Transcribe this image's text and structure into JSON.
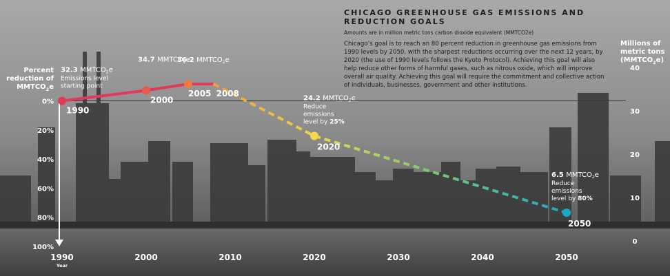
{
  "title": "CHICAGO GREENHOUSE GAS EMISSIONS AND REDUCTION GOALS",
  "subtitle": "Amounts are in million metric tons carbon dioxide equivalent (MMTCO2e)",
  "description": "Chicago’s goal is to reach an 80 percent reduction in greenhouse gas emissions from 1990 levels by 2050, with the sharpest reductions occurring over the next 12 years, by 2020 (the use of 1990 levels follows the Kyoto Protocol). Achieving this goal will also help reduce other forms of harmful gases, such as nitrous oxide, which will improve overall air quality. Achieving this goal will require the commitment and collective action of individuals, businesses, government and other institutions.",
  "left_axis_title": {
    "line1": "Percent",
    "line2": "reduction of",
    "line3": "MMTCO",
    "sub": "2",
    "line3b": "e"
  },
  "right_axis_title": {
    "line1": "Millions of",
    "line2": "metric tons",
    "line3": "(MMTCO",
    "sub": "2",
    "line3b": "e)"
  },
  "colors": {
    "actual": "#e03a5b",
    "actual_end": "#f07a3a",
    "target_start": "#f59a3a",
    "target_mid": "#e9d84a",
    "target_end": "#1aa8c8",
    "axis": "#ffffff"
  },
  "chart_data": {
    "type": "line",
    "title": "CHICAGO GREENHOUSE GAS EMISSIONS AND REDUCTION GOALS",
    "xlabel": "Year",
    "ylabel_left": "Percent reduction of MMTCO2e",
    "ylabel_right": "Millions of metric tons (MMTCO2e)",
    "x_ticks": [
      "1990",
      "2000",
      "2010",
      "2020",
      "2030",
      "2040",
      "2050"
    ],
    "x_range": [
      1990,
      2050
    ],
    "y_left_ticks": [
      "0%",
      "20%",
      "40%",
      "60%",
      "80%",
      "100%"
    ],
    "y_right_ticks": [
      "0",
      "10",
      "20",
      "30",
      "40"
    ],
    "y_right_range": [
      0,
      40
    ],
    "series": [
      {
        "style": "solid",
        "points": [
          {
            "x": 1990,
            "y": 32.3
          },
          {
            "x": 2000,
            "y": 34.7
          },
          {
            "x": 2005,
            "y": 36.2
          },
          {
            "x": 2008,
            "y": 36.2
          }
        ]
      },
      {
        "style": "dashed",
        "points": [
          {
            "x": 2008,
            "y": 36.2
          },
          {
            "x": 2020,
            "y": 24.2
          },
          {
            "x": 2050,
            "y": 6.5
          }
        ]
      }
    ],
    "point_labels": [
      {
        "year": "1990",
        "value": "32.3 MMTCO",
        "sub": "2",
        "value_end": "e",
        "notes": [
          "Emissions level",
          "starting point"
        ]
      },
      {
        "year": "2000",
        "value": "34.7 MMTCO",
        "sub": "2",
        "value_end": "e",
        "notes": []
      },
      {
        "year": "2005",
        "value": "36.2 MMTCO",
        "sub": "2",
        "value_end": "e",
        "notes": []
      },
      {
        "year": "2008",
        "value": "",
        "sub": "",
        "value_end": "",
        "notes": []
      },
      {
        "year": "2020",
        "value": "24.2 MMTCO",
        "sub": "2",
        "value_end": "e",
        "notes": [
          "Reduce",
          "emissions",
          "level by 25%"
        ]
      },
      {
        "year": "2050",
        "value": "6.5 MMTCO",
        "sub": "2",
        "value_end": "e",
        "notes": [
          "Reduce",
          "emissions",
          "level by 80%"
        ]
      }
    ],
    "reference_line_y": 32.3
  }
}
